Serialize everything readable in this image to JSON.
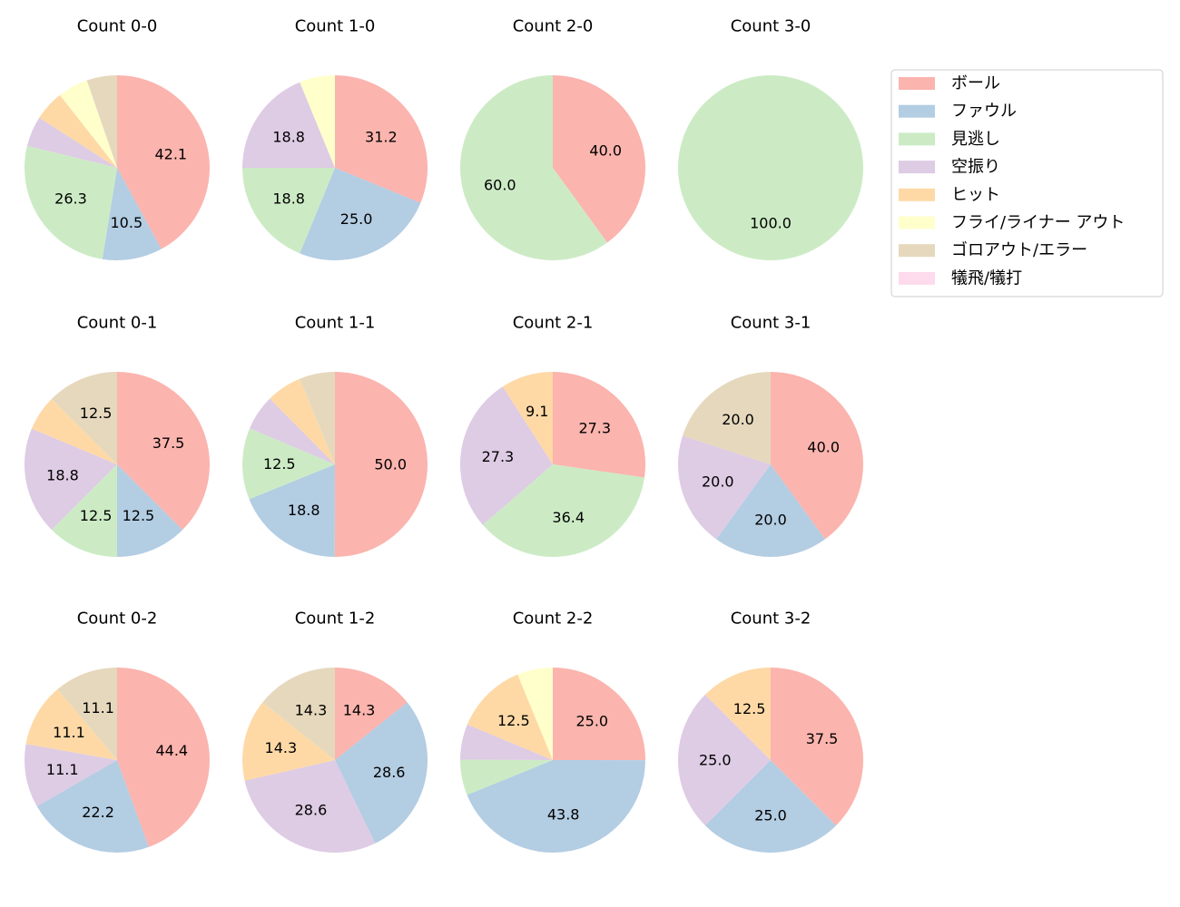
{
  "chart_data": [
    {
      "type": "pie",
      "title": "Count 0-0",
      "values": [
        42.1,
        10.5,
        26.3,
        5.3,
        5.3,
        5.3,
        5.3,
        0
      ]
    },
    {
      "type": "pie",
      "title": "Count 1-0",
      "values": [
        31.2,
        25.0,
        18.8,
        18.8,
        0,
        6.2,
        0,
        0
      ]
    },
    {
      "type": "pie",
      "title": "Count 2-0",
      "values": [
        40.0,
        0,
        60.0,
        0,
        0,
        0,
        0,
        0
      ]
    },
    {
      "type": "pie",
      "title": "Count 3-0",
      "values": [
        0,
        0,
        100.0,
        0,
        0,
        0,
        0,
        0
      ]
    },
    {
      "type": "pie",
      "title": "Count 0-1",
      "values": [
        37.5,
        12.5,
        12.5,
        18.8,
        6.2,
        0,
        12.5,
        0
      ]
    },
    {
      "type": "pie",
      "title": "Count 1-1",
      "values": [
        50.0,
        18.8,
        12.5,
        6.2,
        6.2,
        0,
        6.2,
        0
      ]
    },
    {
      "type": "pie",
      "title": "Count 2-1",
      "values": [
        27.3,
        0,
        36.4,
        27.3,
        9.1,
        0,
        0,
        0
      ]
    },
    {
      "type": "pie",
      "title": "Count 3-1",
      "values": [
        40.0,
        20.0,
        0,
        20.0,
        0,
        0,
        20.0,
        0
      ]
    },
    {
      "type": "pie",
      "title": "Count 0-2",
      "values": [
        44.4,
        22.2,
        0,
        11.1,
        11.1,
        0,
        11.1,
        0
      ]
    },
    {
      "type": "pie",
      "title": "Count 1-2",
      "values": [
        14.3,
        28.6,
        0,
        28.6,
        14.3,
        0,
        14.3,
        0
      ]
    },
    {
      "type": "pie",
      "title": "Count 2-2",
      "values": [
        25.0,
        43.8,
        6.2,
        6.2,
        12.5,
        6.2,
        0,
        0
      ]
    },
    {
      "type": "pie",
      "title": "Count 3-2",
      "values": [
        37.5,
        25.0,
        0,
        25.0,
        12.5,
        0,
        0,
        0
      ]
    }
  ],
  "legend": {
    "placement": "right",
    "labels": [
      "ボール",
      "ファウル",
      "見逃し",
      "空振り",
      "ヒット",
      "フライ/ライナー アウト",
      "ゴロアウト/エラー",
      "犠飛/犠打"
    ],
    "colors": [
      "#fbb4ae",
      "#b3cde3",
      "#ccebc5",
      "#decbe4",
      "#fed9a6",
      "#ffffcc",
      "#e5d8bd",
      "#fddaec"
    ]
  }
}
